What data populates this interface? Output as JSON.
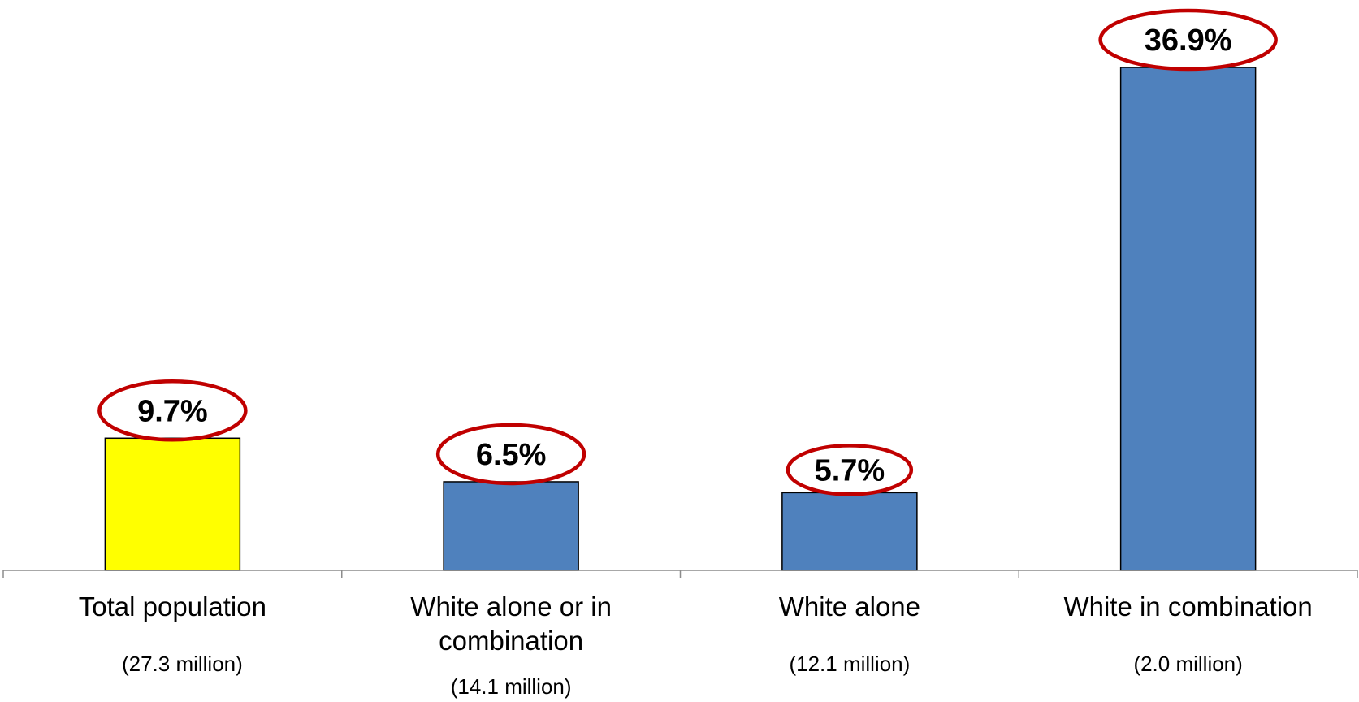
{
  "chart_data": {
    "type": "bar",
    "categories": [
      [
        "Total population"
      ],
      [
        "White alone or in",
        "combination"
      ],
      [
        "White alone"
      ],
      [
        "White in combination"
      ]
    ],
    "sublabels": [
      "(27.3 million)",
      "(14.1 million)",
      "(12.1 million)",
      "(2.0 million)"
    ],
    "values": [
      9.7,
      6.5,
      5.7,
      36.9
    ],
    "data_labels": [
      "9.7%",
      "6.5%",
      "5.7%",
      "36.9%"
    ],
    "bar_colors": [
      "#ffff00",
      "#4f81bd",
      "#4f81bd",
      "#4f81bd"
    ],
    "ylim": [
      0,
      40
    ],
    "title": "",
    "xlabel": "",
    "ylabel": "",
    "grid": false,
    "legend": "none"
  },
  "colors": {
    "highlight_oval": "#c00000",
    "bar_border": "#000000",
    "axis": "#8c8c8c"
  }
}
